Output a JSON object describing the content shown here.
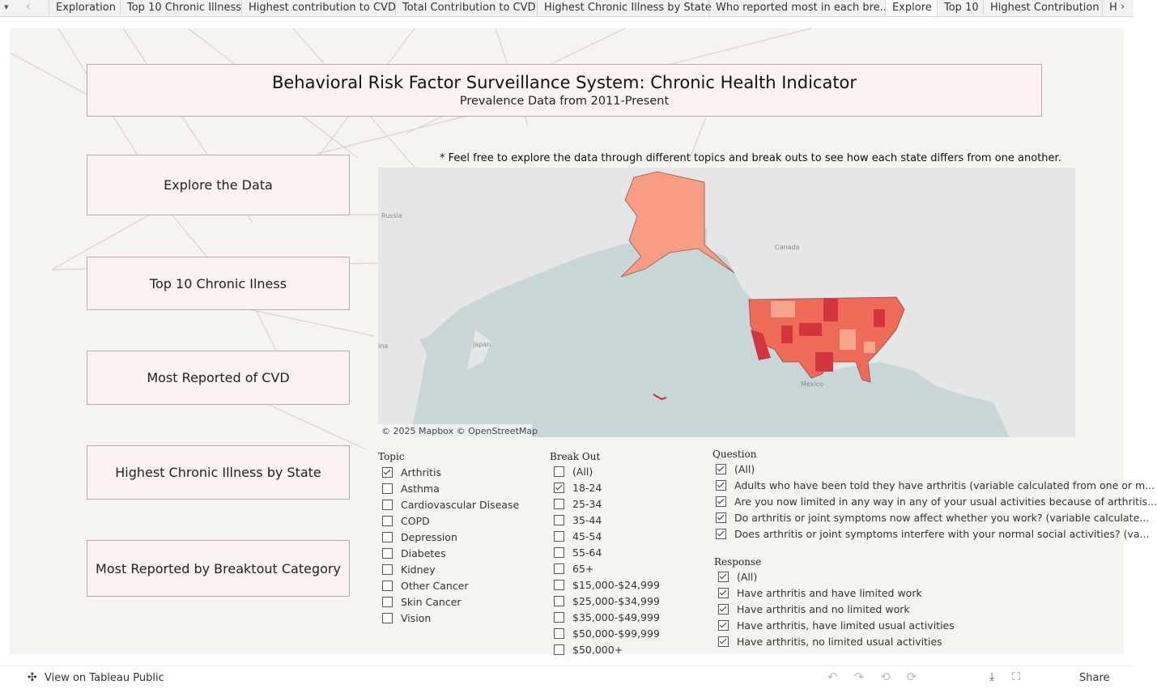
{
  "tabs": [
    "Exploration",
    "Top 10 Chronic Illness",
    "Highest contribution to CVD",
    "Total Contribution to CVD",
    "Highest Chronic Illness by State",
    "Who reported most in each bre...",
    "Explore",
    "Top 10",
    "Highest Contribution",
    "H"
  ],
  "header": {
    "title": "Behavioral Risk Factor Surveillance System: Chronic Health Indicator",
    "subtitle": "Prevalence Data from 2011-Present"
  },
  "nav_buttons": [
    "Explore the Data",
    "Top 10 Chronic Ilness",
    "Most Reported of CVD",
    "Highest Chronic Illness by State",
    "Most Reported by Breaktout Category"
  ],
  "note": "* Feel free to explore the data through different topics and break outs to see how each state differs from one another.",
  "map": {
    "labels": [
      "Russia",
      "Canada",
      "Japan",
      "Mexico",
      "ina"
    ],
    "attribution": "© 2025 Mapbox © OpenStreetMap"
  },
  "filters": [
    {
      "title": "Topic",
      "options": [
        {
          "label": "Arthritis",
          "checked": true
        },
        {
          "label": "Asthma",
          "checked": false
        },
        {
          "label": "Cardiovascular Disease",
          "checked": false
        },
        {
          "label": "COPD",
          "checked": false
        },
        {
          "label": "Depression",
          "checked": false
        },
        {
          "label": "Diabetes",
          "checked": false
        },
        {
          "label": "Kidney",
          "checked": false
        },
        {
          "label": "Other Cancer",
          "checked": false
        },
        {
          "label": "Skin Cancer",
          "checked": false
        },
        {
          "label": "Vision",
          "checked": false
        }
      ]
    },
    {
      "title": "Break Out",
      "options": [
        {
          "label": "(All)",
          "checked": false
        },
        {
          "label": "18-24",
          "checked": true
        },
        {
          "label": "25-34",
          "checked": false
        },
        {
          "label": "35-44",
          "checked": false
        },
        {
          "label": "45-54",
          "checked": false
        },
        {
          "label": "55-64",
          "checked": false
        },
        {
          "label": "65+",
          "checked": false
        },
        {
          "label": "$15,000-$24,999",
          "checked": false
        },
        {
          "label": "$25,000-$34,999",
          "checked": false
        },
        {
          "label": "$35,000-$49,999",
          "checked": false
        },
        {
          "label": "$50,000-$99,999",
          "checked": false
        },
        {
          "label": "$50,000+",
          "checked": false
        }
      ]
    },
    {
      "title": "Question",
      "options": [
        {
          "label": "(All)",
          "checked": true
        },
        {
          "label": "Adults who have been told they have arthritis (variable calculated from one or m...",
          "checked": true
        },
        {
          "label": "Are you now limited in any way in any of your usual activities because of arthritis...",
          "checked": true
        },
        {
          "label": "Do arthritis or joint symptoms now affect whether you work? (variable calculate...",
          "checked": true
        },
        {
          "label": "Does arthritis or joint symptoms interfere with your normal social activities? (va...",
          "checked": true
        }
      ]
    },
    {
      "title": "Response",
      "options": [
        {
          "label": "(All)",
          "checked": true
        },
        {
          "label": "Have arthritis and have limited work",
          "checked": true
        },
        {
          "label": "Have arthritis and no limited work",
          "checked": true
        },
        {
          "label": "Have arthritis, have limited usual activities",
          "checked": true
        },
        {
          "label": "Have arthritis, no limited usual activities",
          "checked": true
        }
      ]
    }
  ],
  "footer": {
    "link": "View on Tableau Public",
    "share": "Share"
  }
}
